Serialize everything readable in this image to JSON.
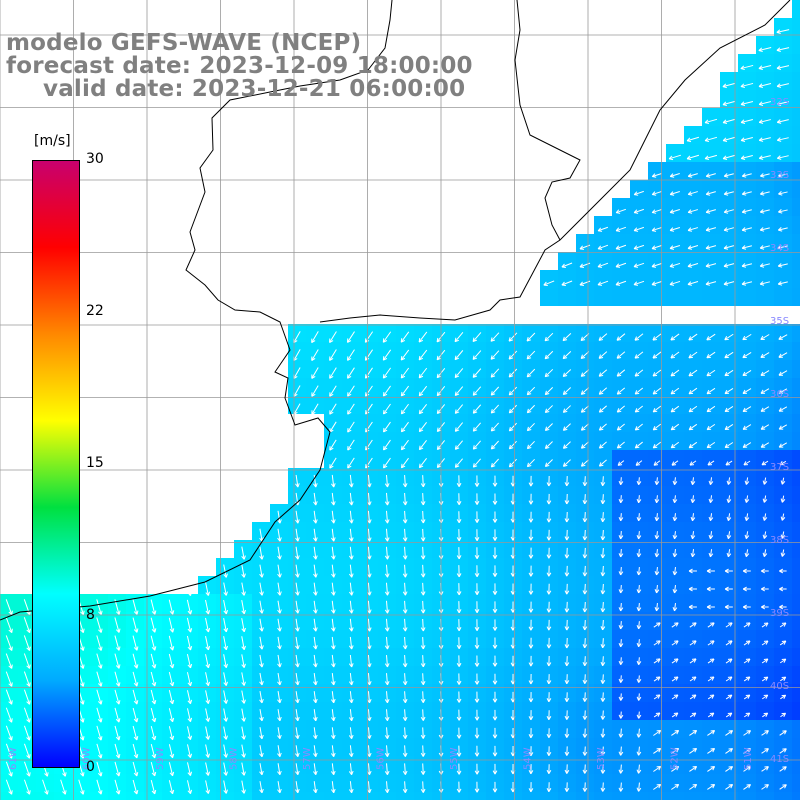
{
  "title": {
    "line1": "modelo GEFS-WAVE (NCEP)",
    "line2": "forecast date: 2023-12-09 18:00:00",
    "line3": "valid date: 2023-12-21 06:00:00"
  },
  "colorbar": {
    "unit": "[m/s]",
    "min": 0,
    "max": 30,
    "tick_labels": [
      "30",
      "22",
      "15",
      "8",
      "0"
    ],
    "tick_values": [
      30,
      22,
      15,
      8,
      0
    ],
    "colors": [
      "#0000ff",
      "#00aaff",
      "#00ffff",
      "#00e040",
      "#ffff00",
      "#ff8800",
      "#ff0000",
      "#c8006e"
    ]
  },
  "map": {
    "lat_labels": [
      "32S",
      "33S",
      "34S",
      "35S",
      "36S",
      "37S",
      "38S",
      "39S",
      "40S",
      "41S"
    ],
    "lon_labels": [
      "61W",
      "60W",
      "59W",
      "58W",
      "57W",
      "56W",
      "55W",
      "54W",
      "53W",
      "52W",
      "51W"
    ],
    "land_color": "#ffffff",
    "coastline_color": "#000000",
    "grid_color": "#999999",
    "arrow_color": "#ffffff"
  }
}
